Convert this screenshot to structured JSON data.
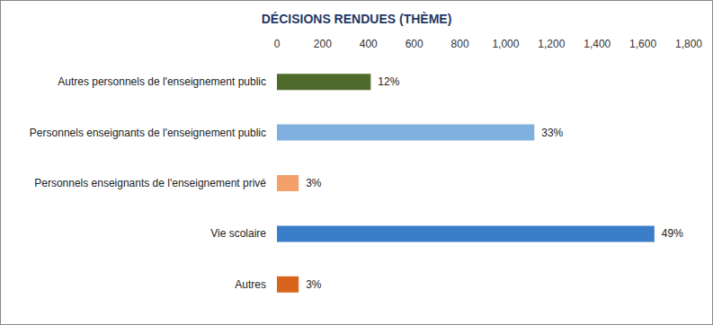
{
  "chart_data": {
    "type": "bar",
    "title": "DÉCISIONS RENDUES (THÈME)",
    "orientation": "horizontal",
    "categories": [
      "Autres personnels de l'enseignement public",
      "Personnels enseignants de l'enseignement public",
      "Personnels enseignants de l'enseignement privé",
      "Vie scolaire",
      "Autres"
    ],
    "values": [
      410,
      1125,
      95,
      1650,
      95
    ],
    "share_labels": [
      "12%",
      "33%",
      "3%",
      "49%",
      "3%"
    ],
    "colors": [
      "#4e6b2b",
      "#7fb0e0",
      "#f4a06a",
      "#3a7dc8",
      "#d9651c"
    ],
    "xlim": [
      0,
      1800
    ],
    "xticks": [
      0,
      200,
      400,
      600,
      800,
      1000,
      1200,
      1400,
      1600,
      1800
    ],
    "grid": false
  }
}
